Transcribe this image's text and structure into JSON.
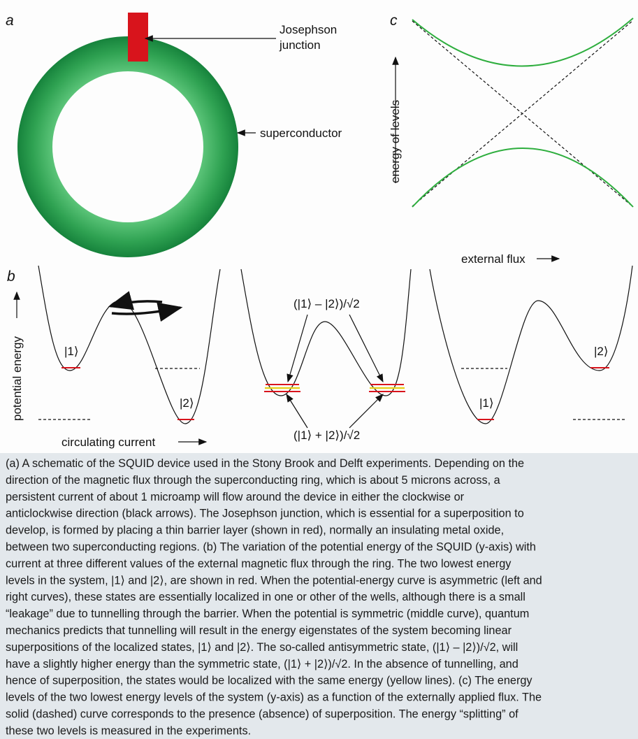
{
  "panels": {
    "a": {
      "label": "a",
      "junction_label": [
        "Josephson",
        "junction"
      ],
      "ring_label": "superconductor"
    },
    "b": {
      "label": "b",
      "y_label": "potential energy",
      "x_label": "circulating current",
      "state1": "|1⟩",
      "state2": "|2⟩",
      "antisymmetric": "(|1⟩ – |2⟩)/√2",
      "symmetric": "(|1⟩ + |2⟩)/√2"
    },
    "c": {
      "label": "c",
      "y_label": "energy of levels",
      "x_label": "external flux"
    }
  },
  "caption": {
    "lines": [
      "(a) A schematic of the SQUID device used in the Stony Brook and Delft experiments. Depending on the",
      "direction of the magnetic flux through the superconducting ring, which is about 5 microns across, a",
      "persistent current of about 1 microamp will flow around the device in either the clockwise or",
      "anticlockwise direction (black arrows). The Josephson junction, which is essential for a superposition to",
      "develop, is formed by placing a thin barrier layer (shown in red), normally an insulating metal oxide,",
      "between two superconducting regions. (b) The variation of the potential energy of the SQUID (y-axis) with",
      "current at three different values of the external magnetic flux through the ring. The two lowest energy",
      "levels in the system, |1⟩ and |2⟩, are shown in red. When the potential-energy curve is asymmetric (left and",
      "right curves), these states are essentially localized in one or other of the wells, although there is a small",
      "“leakage” due to tunnelling through the barrier. When the potential is symmetric (middle curve), quantum",
      "mechanics predicts that tunnelling will result in the energy eigenstates of the system becoming linear",
      "superpositions of the localized states, |1⟩ and |2⟩. The so-called antisymmetric state, (|1⟩ – |2⟩)/√2, will",
      "have a slightly higher energy than the symmetric state, (|1⟩ + |2⟩)/√2. In the absence of tunnelling, and",
      "hence of superposition, the states would be localized with the same energy (yellow lines). (c) The energy",
      "levels of the two lowest energy levels of the system (y-axis) as a function of the externally applied flux. The",
      "solid (dashed) curve corresponds to the presence (absence) of superposition. The energy “splitting” of",
      "these two levels is measured in the experiments."
    ]
  }
}
